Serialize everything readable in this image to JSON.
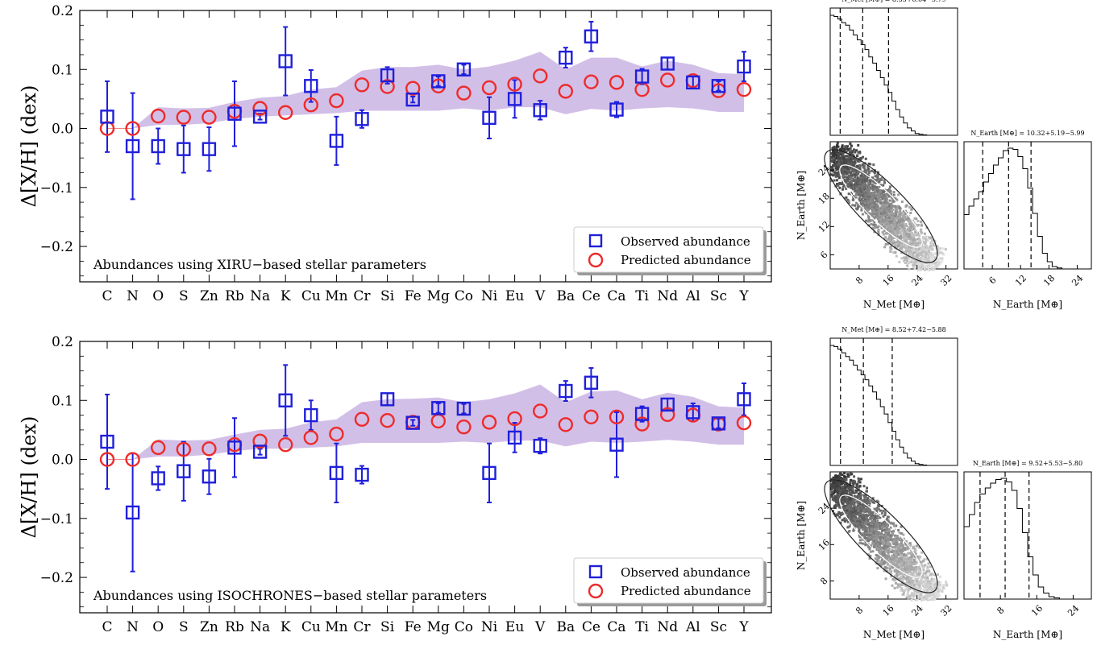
{
  "chart_data": [
    {
      "type": "scatter",
      "ylabel": "Δ[X/H] (dex)",
      "annotation": "Abundances using XIRU−based stellar parameters",
      "categories": [
        "C",
        "N",
        "O",
        "S",
        "Zn",
        "Rb",
        "Na",
        "K",
        "Cu",
        "Mn",
        "Cr",
        "Si",
        "Fe",
        "Mg",
        "Co",
        "Ni",
        "Eu",
        "V",
        "Ba",
        "Ce",
        "Ca",
        "Ti",
        "Nd",
        "Al",
        "Sc",
        "Y"
      ],
      "ylim": [
        -0.26,
        0.2
      ],
      "yticks": [
        "0.2",
        "0.1",
        "0.0",
        "−0.1",
        "−0.2"
      ],
      "ytick_values": [
        0.2,
        0.1,
        0.0,
        -0.1,
        -0.2
      ],
      "legend_position": "bottom-right",
      "series": [
        {
          "name": "Observed abundance",
          "color": "#1f1fdc",
          "marker": "square",
          "values": [
            0.02,
            -0.03,
            -0.03,
            -0.035,
            -0.035,
            0.025,
            0.02,
            0.114,
            0.072,
            -0.021,
            0.016,
            0.09,
            0.049,
            0.08,
            0.1,
            0.018,
            0.05,
            0.031,
            0.12,
            0.156,
            0.032,
            0.088,
            0.11,
            0.078,
            0.072,
            0.105
          ],
          "errors": [
            0.06,
            0.09,
            0.03,
            0.04,
            0.037,
            0.055,
            0.005,
            0.058,
            0.027,
            0.041,
            0.015,
            0.014,
            0.005,
            0.008,
            0.008,
            0.035,
            0.032,
            0.016,
            0.017,
            0.025,
            0.013,
            0.013,
            0.01,
            0.01,
            0.008,
            0.025
          ]
        },
        {
          "name": "Predicted abundance",
          "color": "#ee2b2b",
          "marker": "circle",
          "values": [
            0.0,
            0.0,
            0.021,
            0.019,
            0.019,
            0.029,
            0.034,
            0.027,
            0.04,
            0.047,
            0.074,
            0.071,
            0.068,
            0.072,
            0.06,
            0.069,
            0.075,
            0.089,
            0.063,
            0.079,
            0.078,
            0.066,
            0.082,
            0.081,
            0.064,
            0.066
          ]
        }
      ],
      "band": {
        "color": "#d2bfe7",
        "lower": [
          0.0,
          0.0,
          0.006,
          0.006,
          0.009,
          0.016,
          0.02,
          0.022,
          0.024,
          0.026,
          0.03,
          0.03,
          0.03,
          0.03,
          0.034,
          0.03,
          0.036,
          0.036,
          0.024,
          0.033,
          0.03,
          0.034,
          0.036,
          0.034,
          0.028,
          0.028
        ],
        "upper": [
          0.0,
          0.0,
          0.036,
          0.034,
          0.035,
          0.045,
          0.052,
          0.055,
          0.066,
          0.07,
          0.098,
          0.104,
          0.104,
          0.108,
          0.1,
          0.105,
          0.115,
          0.13,
          0.1,
          0.12,
          0.12,
          0.105,
          0.115,
          0.108,
          0.094,
          0.092
        ]
      }
    },
    {
      "type": "scatter",
      "ylabel": "Δ[X/H] (dex)",
      "annotation": "Abundances using ISOCHRONES−based stellar parameters",
      "categories": [
        "C",
        "N",
        "O",
        "S",
        "Zn",
        "Rb",
        "Na",
        "K",
        "Cu",
        "Mn",
        "Cr",
        "Si",
        "Fe",
        "Mg",
        "Co",
        "Ni",
        "Eu",
        "V",
        "Ba",
        "Ce",
        "Ca",
        "Ti",
        "Nd",
        "Al",
        "Sc",
        "Y"
      ],
      "ylim": [
        -0.26,
        0.2
      ],
      "yticks": [
        "0.2",
        "0.1",
        "0.0",
        "−0.1",
        "−0.2"
      ],
      "ytick_values": [
        0.2,
        0.1,
        0.0,
        -0.1,
        -0.2
      ],
      "legend_position": "bottom-right",
      "series": [
        {
          "name": "Observed abundance",
          "color": "#1f1fdc",
          "marker": "square",
          "values": [
            0.03,
            -0.09,
            -0.032,
            -0.02,
            -0.029,
            0.02,
            0.013,
            0.1,
            0.075,
            -0.023,
            -0.026,
            0.102,
            0.062,
            0.087,
            0.086,
            -0.023,
            0.037,
            0.023,
            0.116,
            0.13,
            0.025,
            0.077,
            0.093,
            0.08,
            0.061,
            0.102
          ],
          "errors": [
            0.08,
            0.1,
            0.02,
            0.05,
            0.03,
            0.05,
            0.005,
            0.06,
            0.025,
            0.05,
            0.015,
            0.01,
            0.005,
            0.008,
            0.008,
            0.05,
            0.025,
            0.013,
            0.017,
            0.025,
            0.055,
            0.013,
            0.01,
            0.015,
            0.008,
            0.027
          ]
        },
        {
          "name": "Predicted abundance",
          "color": "#ee2b2b",
          "marker": "circle",
          "values": [
            0.0,
            0.0,
            0.02,
            0.017,
            0.018,
            0.025,
            0.031,
            0.025,
            0.037,
            0.043,
            0.068,
            0.066,
            0.063,
            0.065,
            0.055,
            0.063,
            0.069,
            0.082,
            0.059,
            0.072,
            0.072,
            0.06,
            0.076,
            0.075,
            0.06,
            0.062
          ]
        }
      ],
      "band": {
        "color": "#d2bfe7",
        "lower": [
          0.0,
          0.0,
          0.005,
          0.005,
          0.008,
          0.014,
          0.018,
          0.018,
          0.02,
          0.022,
          0.028,
          0.028,
          0.028,
          0.028,
          0.03,
          0.028,
          0.032,
          0.032,
          0.022,
          0.03,
          0.028,
          0.03,
          0.033,
          0.03,
          0.025,
          0.025
        ],
        "upper": [
          0.0,
          0.0,
          0.034,
          0.032,
          0.033,
          0.042,
          0.05,
          0.052,
          0.063,
          0.068,
          0.097,
          0.102,
          0.103,
          0.105,
          0.097,
          0.102,
          0.112,
          0.127,
          0.097,
          0.115,
          0.117,
          0.102,
          0.113,
          0.106,
          0.09,
          0.088
        ]
      }
    },
    {
      "type": "corner",
      "hist1_title": "N_Met [M⊕] = 8.35+6.64−5.79",
      "hist2_title": "N_Earth [M⊕] = 10.32+5.19−5.99",
      "x_label_left": "N_Met [M⊕]",
      "x_label_right": "N_Earth [M⊕]",
      "y_label": "N_Earth [M⊕]",
      "met_ticks": [
        "8",
        "16",
        "24",
        "32"
      ],
      "earth_ticks": [
        "6",
        "12",
        "18",
        "24"
      ],
      "hist_met": [
        0.98,
        0.97,
        0.95,
        0.92,
        0.9,
        0.86,
        0.82,
        0.78,
        0.74,
        0.7,
        0.64,
        0.59,
        0.53,
        0.47,
        0.41,
        0.35,
        0.28,
        0.21,
        0.15,
        0.1,
        0.06,
        0.035,
        0.015,
        0.008,
        0.003
      ],
      "hist_earth": [
        0.45,
        0.52,
        0.58,
        0.64,
        0.72,
        0.79,
        0.86,
        0.92,
        0.98,
        1.0,
        0.99,
        0.93,
        0.83,
        0.67,
        0.46,
        0.27,
        0.13,
        0.06,
        0.02,
        0.008
      ],
      "quantile_lines_met": [
        2.56,
        8.35,
        14.99
      ],
      "quantile_lines_earth": [
        4.33,
        10.32,
        15.51
      ]
    },
    {
      "type": "corner",
      "hist1_title": "N_Met [M⊕] = 8.52+7.42−5.88",
      "hist2_title": "N_Earth [M⊕] = 9.52+5.53−5.80",
      "x_label_left": "N_Met [M⊕]",
      "x_label_right": "N_Earth [M⊕]",
      "y_label": "N_Earth [M⊕]",
      "met_ticks": [
        "8",
        "16",
        "24",
        "32"
      ],
      "earth_ticks": [
        "8",
        "16",
        "24"
      ],
      "hist_met": [
        0.98,
        0.97,
        0.95,
        0.92,
        0.89,
        0.86,
        0.82,
        0.78,
        0.74,
        0.7,
        0.65,
        0.6,
        0.54,
        0.48,
        0.42,
        0.35,
        0.28,
        0.21,
        0.15,
        0.1,
        0.06,
        0.035,
        0.015,
        0.008,
        0.003
      ],
      "hist_earth": [
        0.6,
        0.7,
        0.8,
        0.87,
        0.92,
        0.96,
        0.99,
        1.0,
        0.97,
        0.9,
        0.75,
        0.55,
        0.35,
        0.2,
        0.1,
        0.05,
        0.02,
        0.01
      ],
      "quantile_lines_met": [
        2.64,
        8.52,
        15.94
      ],
      "quantile_lines_earth": [
        3.72,
        9.52,
        15.05
      ]
    }
  ],
  "legend": {
    "observed": "Observed abundance",
    "predicted": "Predicted abundance"
  }
}
